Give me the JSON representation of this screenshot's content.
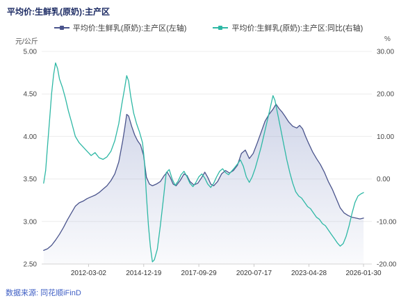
{
  "title": "平均价:生鲜乳(原奶):主产区",
  "footer": "数据来源: 同花顺iFinD",
  "legend": [
    {
      "label": "平均价:生鲜乳(原奶):主产区(左轴)",
      "color": "#4a548c"
    },
    {
      "label": "平均价:生鲜乳(原奶):主产区:同比(右轴)",
      "color": "#2eb8a5"
    }
  ],
  "chart_data": {
    "type": "line",
    "title": "平均价:生鲜乳(原奶):主产区",
    "x_range": [
      2009.8,
      2026.5
    ],
    "x_ticks": [
      "2012-03-02",
      "2014-12-19",
      "2017-09-29",
      "2020-07-17",
      "2023-04-28",
      "2026-01-30"
    ],
    "x_tick_years": [
      2012.17,
      2014.96,
      2017.75,
      2020.54,
      2023.32,
      2026.08
    ],
    "left_axis": {
      "unit": "元/公斤",
      "min": 2.5,
      "max": 5.0,
      "ticks": [
        "5.00",
        "4.50",
        "4.00",
        "3.50",
        "3.00",
        "2.50"
      ]
    },
    "right_axis": {
      "unit": "%",
      "min": -20,
      "max": 30,
      "ticks": [
        "30.00",
        "20.00",
        "10.00",
        "0.00",
        "-10.00",
        "-20.00"
      ]
    },
    "grid": true,
    "legend_position": "top",
    "area_fill_color": "#97a3cd",
    "series": [
      {
        "name": "平均价:生鲜乳(原奶):主产区(左轴)",
        "axis": "left",
        "color": "#4a548c",
        "fill": true,
        "x": [
          2009.9,
          2010.1,
          2010.3,
          2010.5,
          2010.7,
          2010.9,
          2011.1,
          2011.3,
          2011.5,
          2011.7,
          2011.9,
          2012.1,
          2012.3,
          2012.5,
          2012.7,
          2012.9,
          2013.1,
          2013.3,
          2013.5,
          2013.7,
          2013.9,
          2014.0,
          2014.1,
          2014.2,
          2014.35,
          2014.5,
          2014.65,
          2014.8,
          2014.95,
          2015.1,
          2015.25,
          2015.4,
          2015.6,
          2015.8,
          2016.0,
          2016.15,
          2016.3,
          2016.45,
          2016.6,
          2016.8,
          2017.0,
          2017.15,
          2017.3,
          2017.5,
          2017.7,
          2017.9,
          2018.05,
          2018.2,
          2018.35,
          2018.5,
          2018.7,
          2018.9,
          2019.1,
          2019.3,
          2019.5,
          2019.7,
          2019.9,
          2020.1,
          2020.3,
          2020.5,
          2020.7,
          2020.9,
          2021.1,
          2021.3,
          2021.5,
          2021.65,
          2021.8,
          2021.95,
          2022.1,
          2022.3,
          2022.5,
          2022.7,
          2022.85,
          2023.0,
          2023.15,
          2023.3,
          2023.5,
          2023.7,
          2023.9,
          2024.1,
          2024.3,
          2024.5,
          2024.7,
          2024.9,
          2025.1,
          2025.3,
          2025.5,
          2025.7,
          2025.9,
          2026.08
        ],
        "values": [
          2.66,
          2.68,
          2.72,
          2.78,
          2.85,
          2.93,
          3.02,
          3.1,
          3.18,
          3.22,
          3.24,
          3.27,
          3.29,
          3.31,
          3.34,
          3.38,
          3.42,
          3.48,
          3.56,
          3.7,
          3.95,
          4.1,
          4.26,
          4.24,
          4.12,
          4.02,
          3.95,
          3.9,
          3.78,
          3.52,
          3.44,
          3.42,
          3.44,
          3.47,
          3.54,
          3.58,
          3.52,
          3.44,
          3.42,
          3.48,
          3.56,
          3.54,
          3.47,
          3.43,
          3.45,
          3.52,
          3.58,
          3.52,
          3.44,
          3.42,
          3.47,
          3.56,
          3.6,
          3.57,
          3.6,
          3.66,
          3.8,
          3.84,
          3.74,
          3.8,
          3.92,
          4.05,
          4.18,
          4.26,
          4.32,
          4.38,
          4.33,
          4.29,
          4.24,
          4.17,
          4.12,
          4.1,
          4.13,
          4.09,
          4.0,
          3.92,
          3.82,
          3.74,
          3.67,
          3.58,
          3.47,
          3.38,
          3.27,
          3.16,
          3.1,
          3.07,
          3.05,
          3.04,
          3.03,
          3.04
        ]
      },
      {
        "name": "平均价:生鲜乳(原奶):主产区:同比(右轴)",
        "axis": "right",
        "color": "#2eb8a5",
        "fill": false,
        "x": [
          2009.9,
          2010.0,
          2010.1,
          2010.2,
          2010.3,
          2010.4,
          2010.5,
          2010.6,
          2010.7,
          2010.85,
          2011.0,
          2011.15,
          2011.3,
          2011.5,
          2011.7,
          2011.9,
          2012.1,
          2012.3,
          2012.5,
          2012.7,
          2012.9,
          2013.1,
          2013.3,
          2013.5,
          2013.7,
          2013.85,
          2014.0,
          2014.1,
          2014.2,
          2014.3,
          2014.45,
          2014.6,
          2014.75,
          2014.9,
          2015.0,
          2015.1,
          2015.2,
          2015.3,
          2015.4,
          2015.5,
          2015.65,
          2015.8,
          2015.95,
          2016.1,
          2016.25,
          2016.4,
          2016.55,
          2016.7,
          2016.85,
          2017.0,
          2017.15,
          2017.3,
          2017.45,
          2017.6,
          2017.75,
          2017.9,
          2018.05,
          2018.2,
          2018.35,
          2018.5,
          2018.65,
          2018.8,
          2018.95,
          2019.1,
          2019.25,
          2019.4,
          2019.55,
          2019.7,
          2019.85,
          2020.0,
          2020.15,
          2020.3,
          2020.45,
          2020.6,
          2020.75,
          2020.9,
          2021.05,
          2021.2,
          2021.35,
          2021.5,
          2021.6,
          2021.75,
          2021.9,
          2022.05,
          2022.2,
          2022.35,
          2022.5,
          2022.65,
          2022.8,
          2022.95,
          2023.1,
          2023.25,
          2023.4,
          2023.55,
          2023.7,
          2023.85,
          2024.0,
          2024.15,
          2024.3,
          2024.45,
          2024.6,
          2024.75,
          2024.9,
          2025.05,
          2025.2,
          2025.35,
          2025.5,
          2025.65,
          2025.8,
          2025.95,
          2026.08
        ],
        "values": [
          -1,
          2,
          8,
          14,
          20,
          24.5,
          27.3,
          26,
          23.5,
          21.5,
          19,
          16,
          13.5,
          10,
          8.5,
          7.5,
          6.5,
          5.5,
          6.2,
          5.0,
          4.6,
          5.2,
          6.5,
          9,
          13,
          17.5,
          21.5,
          24.3,
          23,
          19.5,
          15.5,
          13,
          11,
          8.5,
          4,
          -4,
          -11,
          -16,
          -19.5,
          -19,
          -16.5,
          -11,
          -5,
          1.5,
          2.2,
          0.0,
          -1.5,
          -0.5,
          1.0,
          1.8,
          0.5,
          -1.0,
          -1.8,
          -0.8,
          0.5,
          1.2,
          0.2,
          -1.2,
          -2.0,
          -1.0,
          0.5,
          1.8,
          2.4,
          1.5,
          1.0,
          1.8,
          2.6,
          3.5,
          4.5,
          3.0,
          0.5,
          -0.8,
          0.5,
          2.5,
          5.0,
          7.5,
          10.5,
          13.5,
          16.5,
          19.6,
          18.5,
          15.0,
          11.5,
          8.0,
          4.5,
          1.5,
          -1.0,
          -3.0,
          -4.0,
          -4.5,
          -5.5,
          -6.5,
          -7.0,
          -8.0,
          -9.0,
          -9.5,
          -10.5,
          -11.0,
          -12.0,
          -13.0,
          -14.0,
          -15.0,
          -15.8,
          -15.2,
          -13.5,
          -11.0,
          -8.0,
          -5.5,
          -4.0,
          -3.5,
          -3.2
        ]
      }
    ]
  }
}
